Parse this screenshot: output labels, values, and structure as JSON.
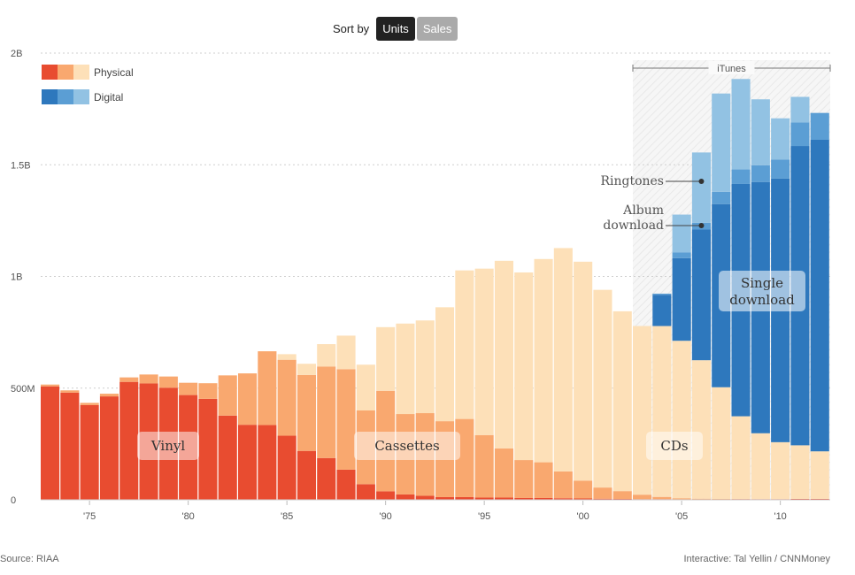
{
  "controls": {
    "sort_label": "Sort by",
    "options": [
      {
        "label": "Units",
        "active": true
      },
      {
        "label": "Sales",
        "active": false
      }
    ]
  },
  "legend": {
    "physical": "Physical",
    "digital": "Digital",
    "physical_colors": [
      "#e84c30",
      "#f9a86f",
      "#fde0b8"
    ],
    "digital_colors": [
      "#2e78bd",
      "#5b9ed4",
      "#92c2e3"
    ]
  },
  "footer": {
    "source": "Source: RIAA",
    "credit": "Interactive: Tal Yellin / CNNMoney"
  },
  "chart_data": {
    "type": "bar",
    "stacked": true,
    "units": "units sold",
    "ylim": [
      0,
      2000
    ],
    "y_ticks": [
      {
        "value": 0,
        "label": "0"
      },
      {
        "value": 500,
        "label": "500M"
      },
      {
        "value": 1000,
        "label": "1B"
      },
      {
        "value": 1500,
        "label": "1.5B"
      },
      {
        "value": 2000,
        "label": "2B"
      }
    ],
    "x_ticks": [
      {
        "year": 1975,
        "label": "'75"
      },
      {
        "year": 1980,
        "label": "'80"
      },
      {
        "year": 1985,
        "label": "'85"
      },
      {
        "year": 1990,
        "label": "'90"
      },
      {
        "year": 1995,
        "label": "'95"
      },
      {
        "year": 2000,
        "label": "'00"
      },
      {
        "year": 2005,
        "label": "'05"
      },
      {
        "year": 2010,
        "label": "'10"
      }
    ],
    "grid": "horizontal dotted",
    "categories": [
      1973,
      1974,
      1975,
      1976,
      1977,
      1978,
      1979,
      1980,
      1981,
      1982,
      1983,
      1984,
      1985,
      1986,
      1987,
      1988,
      1989,
      1990,
      1991,
      1992,
      1993,
      1994,
      1995,
      1996,
      1997,
      1998,
      1999,
      2000,
      2001,
      2002,
      2003,
      2004,
      2005,
      2006,
      2007,
      2008,
      2009,
      2010,
      2011,
      2012
    ],
    "series": [
      {
        "name": "Vinyl",
        "color": "#e84c30",
        "values": [
          508,
          480,
          424,
          463,
          528,
          521,
          502,
          469,
          452,
          377,
          336,
          335,
          287,
          219,
          187,
          135,
          70,
          38,
          24,
          18,
          12,
          12,
          10,
          10,
          8,
          8,
          7,
          6,
          5,
          4,
          3,
          3,
          2,
          2,
          2,
          3,
          3,
          3,
          4,
          4
        ]
      },
      {
        "name": "Cassettes",
        "color": "#f9a86f",
        "values": [
          8,
          10,
          10,
          12,
          20,
          40,
          50,
          55,
          70,
          180,
          230,
          330,
          340,
          340,
          410,
          450,
          330,
          450,
          360,
          370,
          340,
          350,
          280,
          220,
          170,
          160,
          120,
          80,
          50,
          35,
          20,
          10,
          5,
          3,
          2,
          1,
          0,
          0,
          0,
          0
        ]
      },
      {
        "name": "CDs",
        "color": "#fde0b8",
        "values": [
          0,
          0,
          0,
          0,
          0,
          0,
          0,
          0,
          0,
          0,
          0,
          0,
          25,
          50,
          100,
          150,
          205,
          285,
          405,
          415,
          510,
          665,
          745,
          840,
          840,
          910,
          1000,
          980,
          885,
          805,
          755,
          765,
          705,
          620,
          500,
          370,
          295,
          255,
          240,
          213
        ]
      },
      {
        "name": "Single download",
        "color": "#2e78bd",
        "values": [
          0,
          0,
          0,
          0,
          0,
          0,
          0,
          0,
          0,
          0,
          0,
          0,
          0,
          0,
          0,
          0,
          0,
          0,
          0,
          0,
          0,
          0,
          0,
          0,
          0,
          0,
          0,
          0,
          0,
          0,
          0,
          140,
          370,
          585,
          820,
          1040,
          1125,
          1180,
          1340,
          1395
        ]
      },
      {
        "name": "Album download",
        "color": "#5b9ed4",
        "values": [
          0,
          0,
          0,
          0,
          0,
          0,
          0,
          0,
          0,
          0,
          0,
          0,
          0,
          0,
          0,
          0,
          0,
          0,
          0,
          0,
          0,
          0,
          0,
          0,
          0,
          0,
          0,
          0,
          0,
          0,
          0,
          5,
          25,
          30,
          55,
          65,
          75,
          85,
          105,
          120
        ]
      },
      {
        "name": "Ringtones",
        "color": "#92c2e3",
        "values": [
          0,
          0,
          0,
          0,
          0,
          0,
          0,
          0,
          0,
          0,
          0,
          0,
          0,
          0,
          0,
          0,
          0,
          0,
          0,
          0,
          0,
          0,
          0,
          0,
          0,
          0,
          0,
          0,
          0,
          0,
          0,
          0,
          170,
          315,
          440,
          405,
          295,
          185,
          115,
          0
        ]
      }
    ],
    "annotations": {
      "itunes": "iTunes",
      "ringtones": "Ringtones",
      "album_download": [
        "Album",
        "download"
      ],
      "single_download": [
        "Single",
        "download"
      ],
      "vinyl": "Vinyl",
      "cassettes": "Cassettes",
      "cds": "CDs"
    }
  }
}
